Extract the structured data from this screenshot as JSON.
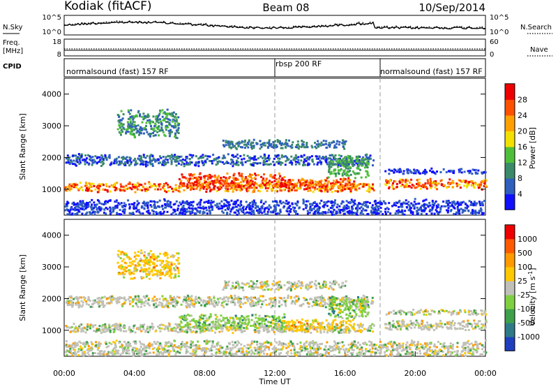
{
  "header": {
    "station": "Kodiak (fitACF)",
    "beam": "Beam 08",
    "date": "10/Sep/2014"
  },
  "summary_labels": {
    "nsky": "N.Sky",
    "nsearch": "N.Search",
    "freq": "Freq.",
    "freq_unit": "[MHz]",
    "nave": "Nave",
    "cpid": "CPID"
  },
  "summary_ticks": {
    "noise_left": [
      "10^5",
      "10^0"
    ],
    "noise_right": [
      "10^5",
      "10^0"
    ],
    "freq_left": [
      "18",
      "8"
    ],
    "nave_right": [
      "60",
      "0"
    ]
  },
  "cpid_segments": [
    {
      "label": "normalsound (fast) 157 RF",
      "start_hour": 0
    },
    {
      "label": "rbsp 200 RF",
      "start_hour": 12
    },
    {
      "label": "normalsound (fast) 157 RF",
      "start_hour": 18
    }
  ],
  "colors": {
    "noise_line": "#000000",
    "divider": "#999999",
    "no_data": "#ffffff"
  },
  "chart_data": [
    {
      "type": "heatmap",
      "name": "power-panel",
      "ylabel": "Slant Range [km]",
      "y_ticks": [
        1000,
        2000,
        3000,
        4000
      ],
      "ylim": [
        180,
        4500
      ],
      "xlim_hours": [
        0,
        24
      ],
      "colorbar": {
        "label": "Power [dB]",
        "ticks": [
          "4",
          "8",
          "12",
          "16",
          "20",
          "24",
          "28"
        ],
        "colors": [
          "#1010ff",
          "#2f5fbf",
          "#3b8a6a",
          "#4fbf3a",
          "#f3e000",
          "#ffa000",
          "#ff5000",
          "#ee0000"
        ]
      }
    },
    {
      "type": "heatmap",
      "name": "velocity-panel",
      "ylabel": "Slant Range [km]",
      "y_ticks": [
        1000,
        2000,
        3000,
        4000
      ],
      "ylim": [
        180,
        4500
      ],
      "xlim_hours": [
        0,
        24
      ],
      "colorbar": {
        "label": "Velocity [m s^-1]",
        "ticks": [
          "1000",
          "500",
          "100",
          "25",
          "-25",
          "-100",
          "-500",
          "-1000"
        ],
        "colors": [
          "#1f3fbf",
          "#2e7a88",
          "#3ea04a",
          "#7fd040",
          "#c0c0b8",
          "#ffc800",
          "#ff9a00",
          "#ff5a00",
          "#ee0000"
        ]
      }
    }
  ],
  "x_axis": {
    "label": "Time UT",
    "ticks": [
      "00:00",
      "04:00",
      "08:00",
      "12:00",
      "16:00",
      "20:00",
      "00:00"
    ],
    "tick_hours": [
      0,
      4,
      8,
      12,
      16,
      20,
      24
    ]
  }
}
